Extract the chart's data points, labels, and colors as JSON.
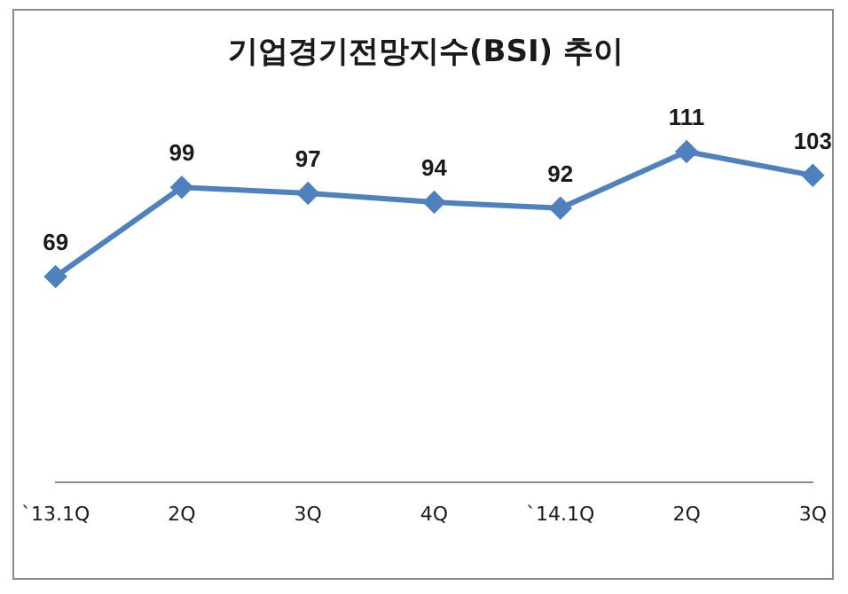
{
  "chart_data": {
    "type": "line",
    "title": "기업경기전망지수(BSI) 추이",
    "categories": [
      "`13.1Q",
      "2Q",
      "3Q",
      "4Q",
      "`14.1Q",
      "2Q",
      "3Q"
    ],
    "series": [
      {
        "color": "#4f81bd",
        "values": [
          69,
          99,
          97,
          94,
          92,
          111,
          103
        ]
      }
    ],
    "data_labels": true,
    "marker": "diamond",
    "line_style": "solid",
    "grid": false,
    "legend": false,
    "tick_labels": "x"
  }
}
